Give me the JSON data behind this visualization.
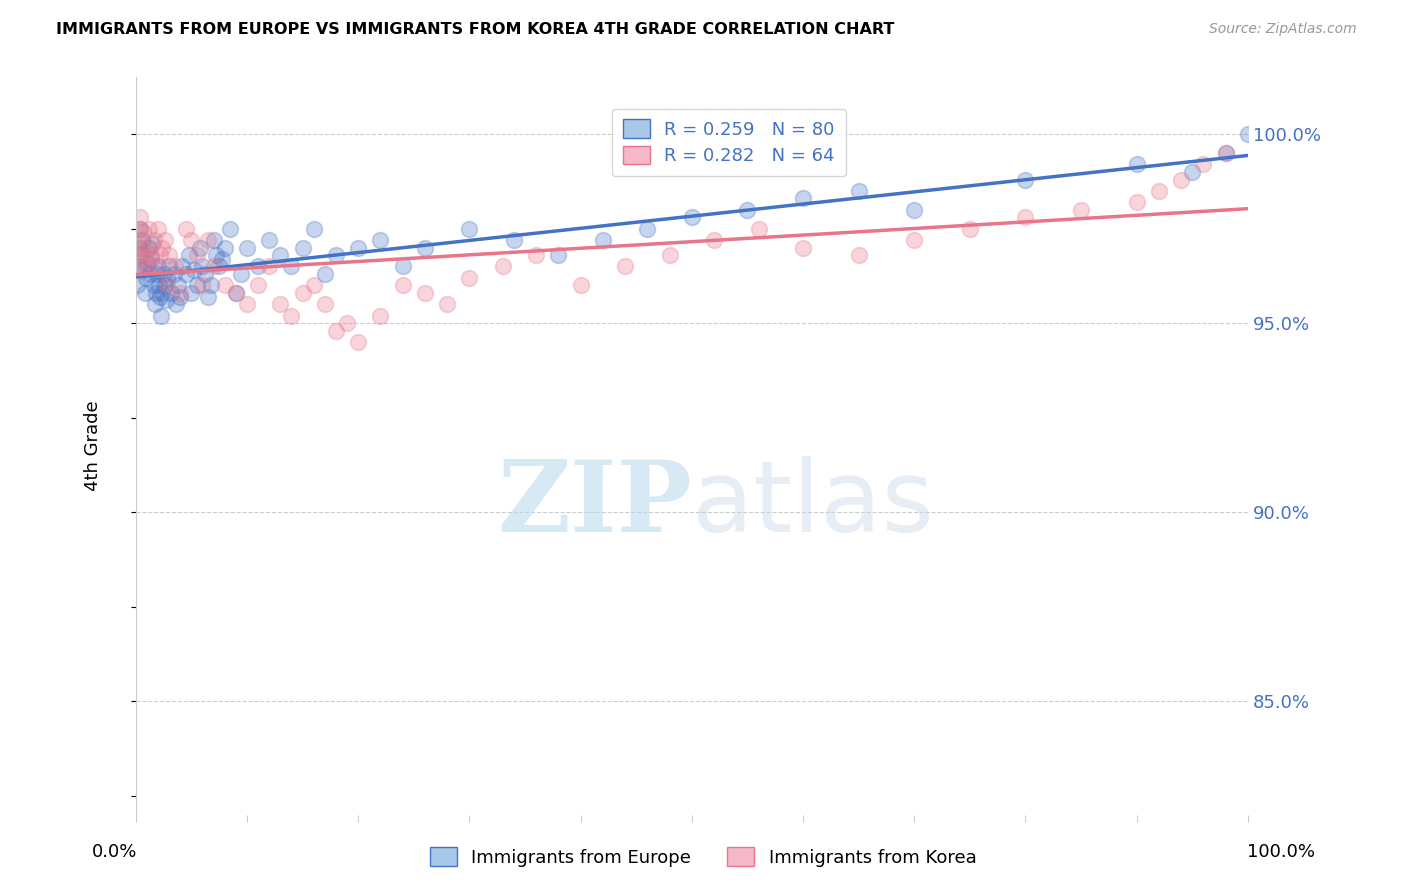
{
  "title": "IMMIGRANTS FROM EUROPE VS IMMIGRANTS FROM KOREA 4TH GRADE CORRELATION CHART",
  "source": "Source: ZipAtlas.com",
  "ylabel": "4th Grade",
  "watermark_zip": "ZIP",
  "watermark_atlas": "atlas",
  "series_europe": {
    "label": "Immigrants from Europe",
    "R": 0.259,
    "N": 80,
    "scatter_color": "#4472c4",
    "line_color": "#4472c4",
    "x": [
      0.001,
      0.002,
      0.003,
      0.004,
      0.005,
      0.006,
      0.007,
      0.008,
      0.009,
      0.01,
      0.012,
      0.013,
      0.014,
      0.015,
      0.016,
      0.017,
      0.018,
      0.019,
      0.02,
      0.021,
      0.022,
      0.023,
      0.024,
      0.025,
      0.026,
      0.027,
      0.028,
      0.03,
      0.032,
      0.034,
      0.036,
      0.038,
      0.04,
      0.042,
      0.045,
      0.048,
      0.05,
      0.052,
      0.055,
      0.058,
      0.06,
      0.062,
      0.065,
      0.068,
      0.07,
      0.072,
      0.075,
      0.078,
      0.08,
      0.085,
      0.09,
      0.095,
      0.1,
      0.11,
      0.12,
      0.13,
      0.14,
      0.15,
      0.16,
      0.17,
      0.18,
      0.2,
      0.22,
      0.24,
      0.26,
      0.3,
      0.34,
      0.38,
      0.42,
      0.46,
      0.5,
      0.55,
      0.6,
      0.65,
      0.7,
      0.8,
      0.9,
      0.95,
      0.98,
      1.0
    ],
    "y": [
      0.96,
      0.965,
      0.97,
      0.975,
      0.968,
      0.972,
      0.964,
      0.958,
      0.962,
      0.966,
      0.97,
      0.963,
      0.967,
      0.971,
      0.96,
      0.955,
      0.958,
      0.963,
      0.965,
      0.96,
      0.957,
      0.952,
      0.958,
      0.963,
      0.96,
      0.956,
      0.962,
      0.965,
      0.958,
      0.963,
      0.955,
      0.96,
      0.957,
      0.965,
      0.963,
      0.968,
      0.958,
      0.964,
      0.96,
      0.97,
      0.965,
      0.963,
      0.957,
      0.96,
      0.972,
      0.968,
      0.965,
      0.967,
      0.97,
      0.975,
      0.958,
      0.963,
      0.97,
      0.965,
      0.972,
      0.968,
      0.965,
      0.97,
      0.975,
      0.963,
      0.968,
      0.97,
      0.972,
      0.965,
      0.97,
      0.975,
      0.972,
      0.968,
      0.972,
      0.975,
      0.978,
      0.98,
      0.983,
      0.985,
      0.98,
      0.988,
      0.992,
      0.99,
      0.995,
      1.0
    ]
  },
  "series_korea": {
    "label": "Immigrants from Korea",
    "R": 0.282,
    "N": 64,
    "scatter_color": "#e8758a",
    "line_color": "#e8758a",
    "x": [
      0.001,
      0.002,
      0.003,
      0.004,
      0.005,
      0.006,
      0.007,
      0.008,
      0.009,
      0.01,
      0.012,
      0.014,
      0.016,
      0.018,
      0.02,
      0.022,
      0.024,
      0.026,
      0.028,
      0.03,
      0.035,
      0.04,
      0.045,
      0.05,
      0.055,
      0.06,
      0.065,
      0.07,
      0.08,
      0.09,
      0.1,
      0.11,
      0.12,
      0.13,
      0.14,
      0.15,
      0.16,
      0.17,
      0.18,
      0.19,
      0.2,
      0.22,
      0.24,
      0.26,
      0.28,
      0.3,
      0.33,
      0.36,
      0.4,
      0.44,
      0.48,
      0.52,
      0.56,
      0.6,
      0.65,
      0.7,
      0.75,
      0.8,
      0.85,
      0.9,
      0.92,
      0.94,
      0.96,
      0.98
    ],
    "y": [
      0.968,
      0.972,
      0.975,
      0.978,
      0.965,
      0.97,
      0.974,
      0.968,
      0.965,
      0.97,
      0.975,
      0.968,
      0.972,
      0.965,
      0.975,
      0.968,
      0.97,
      0.972,
      0.96,
      0.968,
      0.965,
      0.958,
      0.975,
      0.972,
      0.968,
      0.96,
      0.972,
      0.965,
      0.96,
      0.958,
      0.955,
      0.96,
      0.965,
      0.955,
      0.952,
      0.958,
      0.96,
      0.955,
      0.948,
      0.95,
      0.945,
      0.952,
      0.96,
      0.958,
      0.955,
      0.962,
      0.965,
      0.968,
      0.96,
      0.965,
      0.968,
      0.972,
      0.975,
      0.97,
      0.968,
      0.972,
      0.975,
      0.978,
      0.98,
      0.982,
      0.985,
      0.988,
      0.992,
      0.995
    ]
  },
  "xlim": [
    0.0,
    1.0
  ],
  "ylim": [
    0.82,
    1.015
  ],
  "yticks": [
    0.85,
    0.9,
    0.95,
    1.0
  ],
  "ytick_labels": [
    "85.0%",
    "90.0%",
    "95.0%",
    "100.0%"
  ],
  "grid_color": "#cccccc",
  "background_color": "#ffffff",
  "legend_text_color": "#4472c4"
}
